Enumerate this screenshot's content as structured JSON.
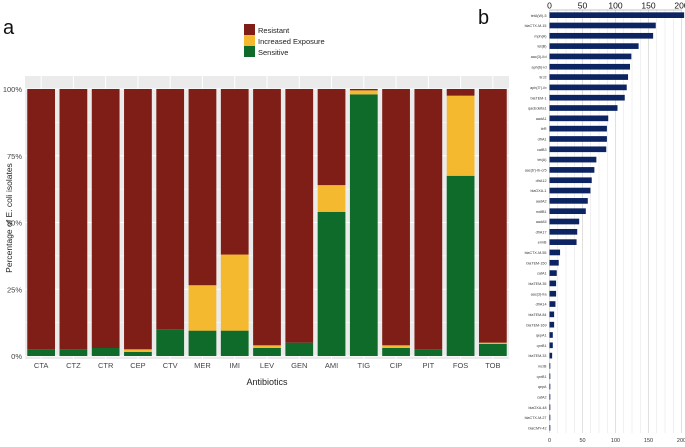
{
  "panels": {
    "a_label": "a",
    "b_label": "b"
  },
  "colors": {
    "resistant": "#7f1d17",
    "increased": "#f5b92f",
    "sensitive": "#0f6b2a",
    "panel_bg": "#ebebeb",
    "grid": "#ffffff",
    "navy": "#0c2461"
  },
  "chart_data": [
    {
      "type": "bar",
      "stacked": true,
      "xlabel": "Antibiotics",
      "ylabel": "Percentage of E. coli isolates",
      "ylim": [
        0,
        100
      ],
      "y_ticks": [
        "0%",
        "25%",
        "50%",
        "75%",
        "100%"
      ],
      "legend": [
        "Resistant",
        "Increased Exposure",
        "Sensitive"
      ],
      "legend_position": "top-right",
      "categories": [
        "CTA",
        "CTZ",
        "CTR",
        "CEP",
        "CTV",
        "MER",
        "IMI",
        "LEV",
        "GEN",
        "AMI",
        "TIG",
        "CIP",
        "PIT",
        "FOS",
        "TOB"
      ],
      "series": [
        {
          "name": "Sensitive",
          "values": [
            2.5,
            2.5,
            3,
            1.5,
            10,
            9.5,
            9.5,
            3,
            5,
            54,
            98,
            3,
            2.5,
            67.5,
            4.5
          ]
        },
        {
          "name": "Increased Exposure",
          "values": [
            0,
            0,
            0,
            1,
            0,
            17,
            28.5,
            1,
            0,
            10,
            1.5,
            1,
            0,
            30,
            0.5
          ]
        },
        {
          "name": "Resistant",
          "values": [
            97.5,
            97.5,
            97,
            97.5,
            90,
            73.5,
            62,
            96,
            95,
            36,
            0.5,
            96,
            97.5,
            2.5,
            95
          ]
        }
      ]
    },
    {
      "type": "bar",
      "orientation": "horizontal",
      "xlim": [
        0,
        200
      ],
      "x_ticks": [
        "0",
        "50",
        "100",
        "150",
        "200"
      ],
      "categories": [
        "tetA(W)-5",
        "blaCTX-M-15",
        "mph(A)",
        "tet(B)",
        "aac(3)-IId",
        "aph(6)-Id",
        "tirJ2",
        "aph(3'')-Ib",
        "blaTEM-1",
        "qacEdelta1",
        "aadA1",
        "tirR",
        "dfrA1",
        "catB3",
        "tet(A)",
        "aac(6')-Ib-cr5",
        "dfrA12",
        "blaOXA-1",
        "aadA2",
        "mdfB1",
        "aadA5",
        "dfrA17",
        "ermB",
        "blaCTX-M-55",
        "blaTEM-150",
        "catA1",
        "blaTEM-35",
        "aac(3)-IIa",
        "dfrA14",
        "blaTEM-84",
        "blaTEM-169",
        "qepA1",
        "qnrB1",
        "blaTEM-33",
        "mcrB",
        "qnrB1",
        "qepA",
        "catA2",
        "blaOXA-48",
        "blaCTX-M-27",
        "blaCMY-42"
      ],
      "values": [
        204,
        161,
        157,
        135,
        124,
        122,
        119,
        117,
        114,
        103,
        89,
        87,
        87,
        86,
        71,
        68,
        64,
        62,
        58,
        55,
        45,
        42,
        41,
        16,
        14,
        11,
        10,
        10,
        9,
        7,
        7,
        5,
        5,
        4,
        1,
        1,
        1,
        1,
        1,
        1,
        1
      ]
    }
  ]
}
